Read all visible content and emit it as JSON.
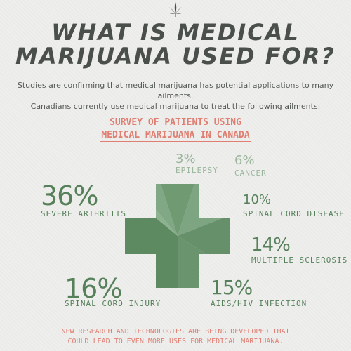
{
  "title": {
    "line1": "WHAT IS MEDICAL",
    "line2": "MARIJUANA USED FOR?"
  },
  "intro": {
    "line1": "Studies are confirming that medical marijuana has potential applications to many ailments.",
    "line2": "Canadians currently use medical marijuana to treat the following ailments:"
  },
  "survey_title": {
    "line1": "SURVEY OF PATIENTS USING",
    "line2": "MEDICAL MARIJUANA IN CANADA"
  },
  "footer": {
    "line1": "NEW RESEARCH AND TECHNOLOGIES ARE BEING DEVELOPED THAT",
    "line2": "COULD LEAD TO EVEN MORE USES FOR MEDICAL MARIJUANA."
  },
  "colors": {
    "accent": "#e07e72",
    "green": "#56805a",
    "green_light": "#9ab69c",
    "text_dark": "#4a4f4b"
  },
  "icons": {
    "header": "cannabis-leaf-icon"
  },
  "chart_data": {
    "type": "pie",
    "title": "SURVEY OF PATIENTS USING MEDICAL MARIJUANA IN CANADA",
    "slices": [
      {
        "label": "SEVERE ARTHRITIS",
        "value": 36,
        "display": "36%"
      },
      {
        "label": "EPILEPSY",
        "value": 3,
        "display": "3%"
      },
      {
        "label": "CANCER",
        "value": 6,
        "display": "6%"
      },
      {
        "label": "SPINAL CORD DISEASE",
        "value": 10,
        "display": "10%"
      },
      {
        "label": "MULTIPLE SCLEROSIS",
        "value": 14,
        "display": "14%"
      },
      {
        "label": "AIDS/HIV INFECTION",
        "value": 15,
        "display": "15%"
      },
      {
        "label": "SPINAL CORD INJURY",
        "value": 16,
        "display": "16%"
      }
    ]
  }
}
